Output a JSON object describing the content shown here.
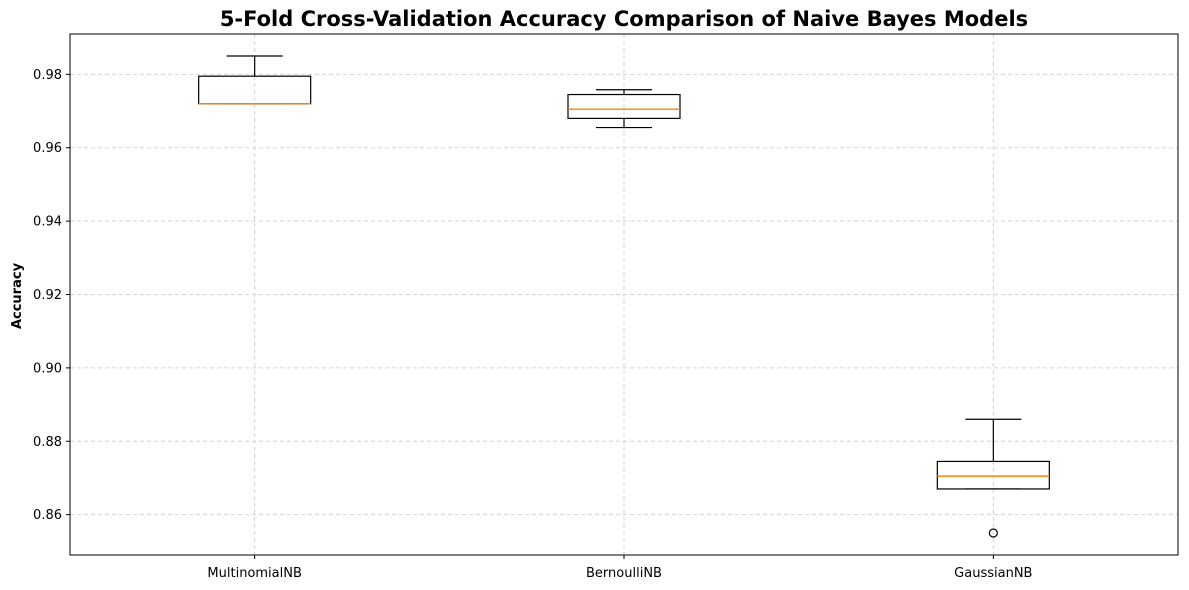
{
  "chart_data": {
    "type": "box",
    "title": "5-Fold Cross-Validation Accuracy Comparison of Naive Bayes Models",
    "xlabel": "",
    "ylabel": "Accuracy",
    "ylim": [
      0.849,
      0.991
    ],
    "yticks": [
      0.86,
      0.88,
      0.9,
      0.92,
      0.94,
      0.96,
      0.98
    ],
    "ytick_labels": [
      "0.86",
      "0.88",
      "0.90",
      "0.92",
      "0.94",
      "0.96",
      "0.98"
    ],
    "categories": [
      "MultinomialNB",
      "BernoulliNB",
      "GaussianNB"
    ],
    "grid": true,
    "boxes": [
      {
        "category": "MultinomialNB",
        "whisker_low": 0.972,
        "q1": 0.972,
        "median": 0.972,
        "q3": 0.9795,
        "whisker_high": 0.985,
        "outliers": []
      },
      {
        "category": "BernoulliNB",
        "whisker_low": 0.9655,
        "q1": 0.968,
        "median": 0.9705,
        "q3": 0.9745,
        "whisker_high": 0.9758,
        "outliers": []
      },
      {
        "category": "GaussianNB",
        "whisker_low": 0.867,
        "q1": 0.867,
        "median": 0.8705,
        "q3": 0.8745,
        "whisker_high": 0.886,
        "outliers": [
          0.855
        ]
      }
    ]
  },
  "colors": {
    "box": "#000000",
    "median": "#ff7f0e",
    "grid": "#d3d3d3",
    "background": "#ffffff"
  }
}
